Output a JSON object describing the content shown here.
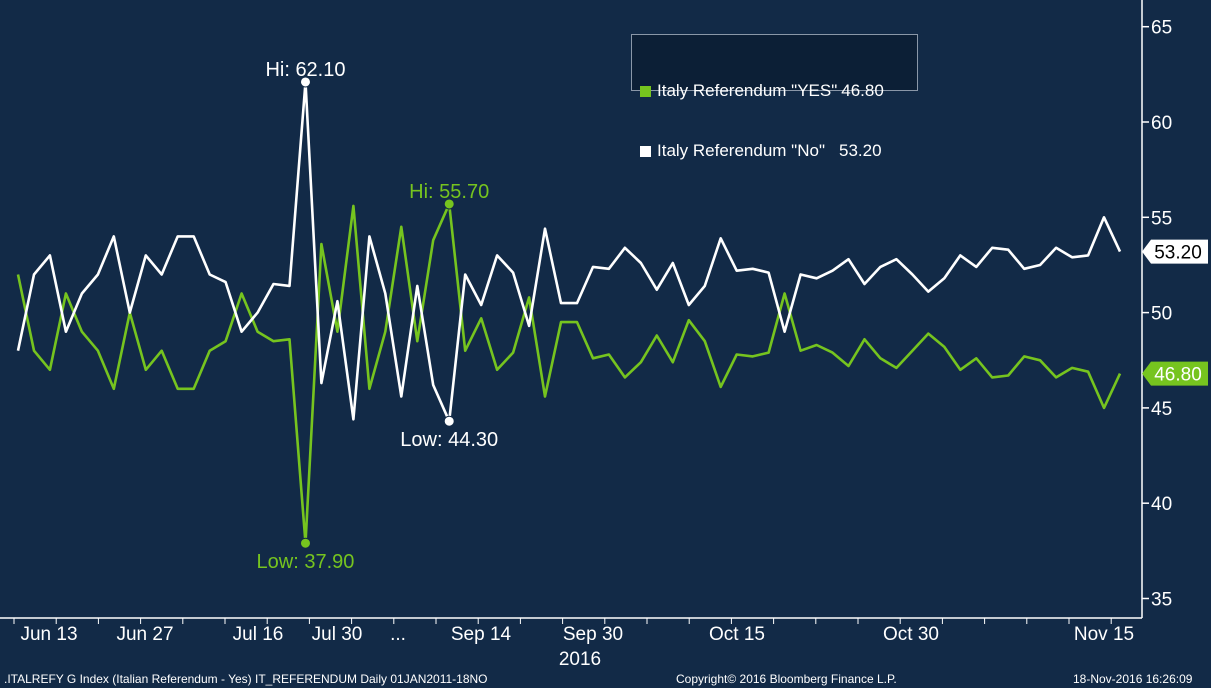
{
  "chart_data": {
    "type": "line",
    "ylim": [
      34,
      66
    ],
    "yticks": [
      35,
      40,
      45,
      50,
      55,
      60,
      65
    ],
    "x_labels": [
      "Jun 13",
      "Jun 27",
      "Jul 16",
      "Jul 30",
      "...",
      "Sep 14",
      "Sep 30",
      "Oct 15",
      "Oct 30",
      "Nov 15"
    ],
    "year_label": "2016",
    "grid": false,
    "legend_position": "top-right",
    "series": [
      {
        "name": "Italy Referendum \"YES\"",
        "legend_value": "46.80",
        "last_label": "46.80",
        "color": "#76c41f",
        "values": [
          52.0,
          48.0,
          47.0,
          51.0,
          49.0,
          48.0,
          46.0,
          50.0,
          47.0,
          48.0,
          46.0,
          46.0,
          48.0,
          48.5,
          51.0,
          49.0,
          48.5,
          48.6,
          37.9,
          53.6,
          49.0,
          55.6,
          46.0,
          49.0,
          54.5,
          48.5,
          53.8,
          55.7,
          48.0,
          49.7,
          47.0,
          47.9,
          50.8,
          45.6,
          49.5,
          49.5,
          47.6,
          47.8,
          46.6,
          47.4,
          48.8,
          47.4,
          49.6,
          48.5,
          46.1,
          47.8,
          47.7,
          47.9,
          51.0,
          48.0,
          48.3,
          47.9,
          47.2,
          48.6,
          47.6,
          47.1,
          48.0,
          48.9,
          48.2,
          47.0,
          47.6,
          46.6,
          46.7,
          47.7,
          47.5,
          46.6,
          47.1,
          46.9,
          45.0,
          46.8
        ],
        "high": {
          "label": "Hi:",
          "value": "55.70"
        },
        "low": {
          "label": "Low:",
          "value": "37.90"
        }
      },
      {
        "name": "Italy Referendum \"No\"",
        "legend_value": "53.20",
        "last_label": "53.20",
        "color": "#ffffff",
        "values": [
          48.0,
          52.0,
          53.0,
          49.0,
          51.0,
          52.0,
          54.0,
          50.0,
          53.0,
          52.0,
          54.0,
          54.0,
          52.0,
          51.6,
          49.0,
          50.0,
          51.5,
          51.4,
          62.1,
          46.3,
          50.6,
          44.4,
          54.0,
          51.0,
          45.6,
          51.4,
          46.2,
          44.3,
          52.0,
          50.4,
          53.0,
          52.1,
          49.3,
          54.4,
          50.5,
          50.5,
          52.4,
          52.3,
          53.4,
          52.6,
          51.2,
          52.6,
          50.4,
          51.4,
          53.9,
          52.2,
          52.3,
          52.1,
          49.0,
          52.0,
          51.8,
          52.2,
          52.8,
          51.5,
          52.4,
          52.8,
          52.0,
          51.1,
          51.8,
          53.0,
          52.4,
          53.4,
          53.3,
          52.3,
          52.5,
          53.4,
          52.9,
          53.0,
          55.0,
          53.2
        ],
        "high": {
          "label": "Hi:",
          "value": "62.10"
        },
        "low": {
          "label": "Low:",
          "value": "44.30"
        }
      }
    ]
  },
  "legend": {
    "yes_label": "Italy Referendum \"YES\"",
    "yes_value": "46.80",
    "no_label": "Italy Referendum \"No\"",
    "no_value": "53.20"
  },
  "footer": {
    "left": ".ITALREFY G Index (Italian Referendum - Yes) IT_REFERENDUM  Daily 01JAN2011-18NO",
    "center": "Copyright© 2016 Bloomberg Finance L.P.",
    "right": "18-Nov-2016 16:26:09"
  }
}
